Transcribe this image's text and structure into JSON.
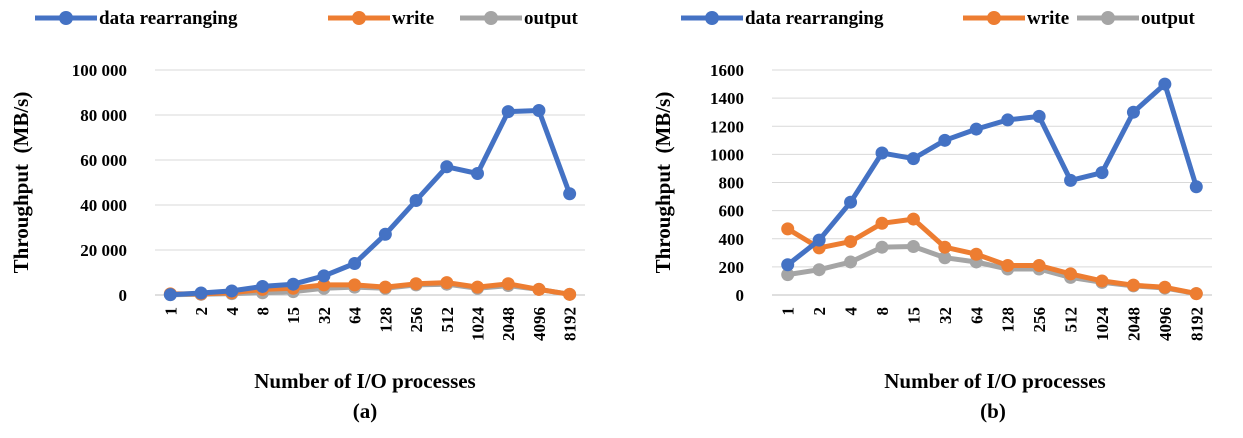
{
  "chart_data": [
    {
      "type": "line",
      "panel_label": "(a)",
      "xlabel": "Number of I/O processes",
      "ylabel": "Throughput  (MB/s)",
      "categories": [
        "1",
        "2",
        "4",
        "8",
        "15",
        "32",
        "64",
        "128",
        "256",
        "512",
        "1024",
        "2048",
        "4096",
        "8192"
      ],
      "ylim": [
        0,
        100000
      ],
      "yticks": [
        0,
        20000,
        40000,
        60000,
        80000,
        100000
      ],
      "ytick_labels": [
        "0",
        "20 000",
        "40 000",
        "60 000",
        "80 000",
        "100 000"
      ],
      "grid": true,
      "legend_position": "top",
      "series": [
        {
          "name": "data rearranging",
          "color": "#4472C4",
          "values": [
            150,
            900,
            1800,
            3800,
            4800,
            8500,
            14000,
            27000,
            42000,
            57000,
            54000,
            81500,
            82000,
            45000
          ]
        },
        {
          "name": "write",
          "color": "#ED7D31",
          "values": [
            500,
            500,
            1000,
            2500,
            3000,
            4500,
            4500,
            3500,
            5000,
            5500,
            3500,
            5000,
            2500,
            300
          ]
        },
        {
          "name": "output",
          "color": "#A5A5A5",
          "values": [
            150,
            300,
            600,
            1000,
            1500,
            3000,
            3500,
            3000,
            4500,
            4800,
            3000,
            4200,
            2500,
            300
          ]
        }
      ]
    },
    {
      "type": "line",
      "panel_label": "(b)",
      "xlabel": "Number of I/O processes",
      "ylabel": "Throughput  (MB/s)",
      "categories": [
        "1",
        "2",
        "4",
        "8",
        "15",
        "32",
        "64",
        "128",
        "256",
        "512",
        "1024",
        "2048",
        "4096",
        "8192"
      ],
      "ylim": [
        0,
        1600
      ],
      "yticks": [
        0,
        200,
        400,
        600,
        800,
        1000,
        1200,
        1400,
        1600
      ],
      "ytick_labels": [
        "0",
        "200",
        "400",
        "600",
        "800",
        "1000",
        "1200",
        "1400",
        "1600"
      ],
      "grid": true,
      "legend_position": "top",
      "series": [
        {
          "name": "data rearranging",
          "color": "#4472C4",
          "values": [
            215,
            390,
            660,
            1010,
            970,
            1100,
            1180,
            1245,
            1270,
            815,
            870,
            1300,
            1500,
            770
          ]
        },
        {
          "name": "write",
          "color": "#ED7D31",
          "values": [
            470,
            335,
            380,
            510,
            540,
            340,
            290,
            210,
            210,
            150,
            100,
            70,
            55,
            10
          ]
        },
        {
          "name": "output",
          "color": "#A5A5A5",
          "values": [
            145,
            180,
            235,
            340,
            345,
            265,
            235,
            185,
            185,
            125,
            90,
            65,
            50,
            10
          ]
        }
      ]
    }
  ]
}
